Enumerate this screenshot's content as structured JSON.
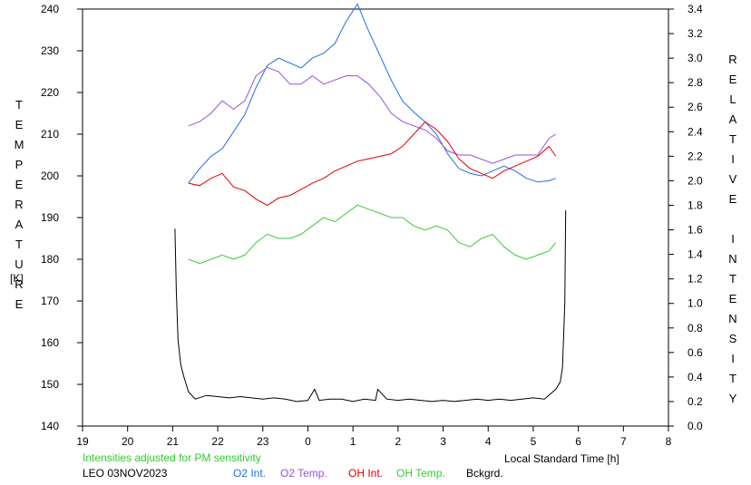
{
  "chart_data": {
    "type": "line",
    "left_axis_label": "TEMPERATURE",
    "left_axis_unit": "[K]",
    "right_axis_label": "RELATIVE INTENSITY",
    "xlabel": "Local Standard Time [h]",
    "note": "Intensities adjusted for PM sensitivity",
    "station_date": "LEO 03NOV2023",
    "x_ticks": [
      "19",
      "20",
      "21",
      "22",
      "23",
      "0",
      "1",
      "2",
      "3",
      "4",
      "5",
      "6",
      "7",
      "8"
    ],
    "y_left_ticks": [
      "140",
      "150",
      "160",
      "170",
      "180",
      "190",
      "200",
      "210",
      "220",
      "230",
      "240"
    ],
    "y_right_ticks": [
      "0.0",
      "0.2",
      "0.4",
      "0.6",
      "0.8",
      "1.0",
      "1.2",
      "1.4",
      "1.6",
      "1.8",
      "2.0",
      "2.2",
      "2.4",
      "2.6",
      "2.8",
      "3.0",
      "3.2",
      "3.4"
    ],
    "xlim": [
      19,
      32
    ],
    "ylim_left": [
      140,
      240
    ],
    "ylim_right": [
      0,
      3.4
    ],
    "grid": false,
    "colors": {
      "o2_int": "#1f6fe6",
      "o2_temp": "#9b4fd8",
      "oh_int": "#e00000",
      "oh_temp": "#3cc83c",
      "bckgrd": "#000000",
      "note": "#2ecc2e"
    },
    "series": [
      {
        "name": "O2 Int.",
        "axis": "right",
        "color": "#1f6fe6",
        "x": [
          21.35,
          21.6,
          21.85,
          22.1,
          22.35,
          22.6,
          22.85,
          23.1,
          23.35,
          23.6,
          23.85,
          24.1,
          24.35,
          24.6,
          24.85,
          25.1,
          25.35,
          25.6,
          25.85,
          26.1,
          26.35,
          26.6,
          26.85,
          27.1,
          27.35,
          27.6,
          27.85,
          28.1,
          28.35,
          28.6,
          28.85,
          29.1,
          29.35,
          29.5
        ],
        "y": [
          1.98,
          2.1,
          2.2,
          2.26,
          2.4,
          2.54,
          2.76,
          2.94,
          3.0,
          2.96,
          2.92,
          3.0,
          3.04,
          3.12,
          3.3,
          3.44,
          3.22,
          3.02,
          2.82,
          2.65,
          2.56,
          2.48,
          2.38,
          2.22,
          2.1,
          2.06,
          2.04,
          2.08,
          2.12,
          2.08,
          2.02,
          1.99,
          2.0,
          2.02
        ]
      },
      {
        "name": "O2 Temp.",
        "axis": "left",
        "color": "#9b4fd8",
        "x": [
          21.35,
          21.6,
          21.85,
          22.1,
          22.35,
          22.6,
          22.85,
          23.1,
          23.35,
          23.6,
          23.85,
          24.1,
          24.35,
          24.6,
          24.85,
          25.1,
          25.35,
          25.6,
          25.85,
          26.1,
          26.35,
          26.6,
          26.85,
          27.1,
          27.35,
          27.6,
          27.85,
          28.1,
          28.35,
          28.6,
          28.85,
          29.1,
          29.35,
          29.5
        ],
        "y": [
          212,
          213,
          215,
          218,
          216,
          218,
          224,
          226,
          225,
          222,
          222,
          224,
          222,
          223,
          224,
          224,
          222,
          219,
          215,
          213,
          212,
          211,
          209,
          206,
          205,
          205,
          204,
          203,
          204,
          205,
          205,
          205,
          209,
          210
        ]
      },
      {
        "name": "OH Int.",
        "axis": "right",
        "color": "#e00000",
        "x": [
          21.35,
          21.6,
          21.85,
          22.1,
          22.35,
          22.6,
          22.85,
          23.1,
          23.35,
          23.6,
          23.85,
          24.1,
          24.35,
          24.6,
          24.85,
          25.1,
          25.35,
          25.6,
          25.85,
          26.1,
          26.35,
          26.6,
          26.85,
          27.1,
          27.35,
          27.6,
          27.85,
          28.1,
          28.35,
          28.6,
          28.85,
          29.1,
          29.35,
          29.5
        ],
        "y": [
          1.98,
          1.96,
          2.02,
          2.06,
          1.95,
          1.92,
          1.85,
          1.8,
          1.86,
          1.88,
          1.93,
          1.98,
          2.02,
          2.08,
          2.12,
          2.16,
          2.18,
          2.2,
          2.22,
          2.28,
          2.38,
          2.48,
          2.42,
          2.32,
          2.18,
          2.1,
          2.06,
          2.02,
          2.08,
          2.12,
          2.16,
          2.2,
          2.28,
          2.2
        ]
      },
      {
        "name": "OH Temp.",
        "axis": "left",
        "color": "#3cc83c",
        "x": [
          21.35,
          21.6,
          21.85,
          22.1,
          22.35,
          22.6,
          22.85,
          23.1,
          23.35,
          23.6,
          23.85,
          24.1,
          24.35,
          24.6,
          24.85,
          25.1,
          25.35,
          25.6,
          25.85,
          26.1,
          26.35,
          26.6,
          26.85,
          27.1,
          27.35,
          27.6,
          27.85,
          28.1,
          28.35,
          28.6,
          28.85,
          29.1,
          29.35,
          29.5
        ],
        "y": [
          180,
          179,
          180,
          181,
          180,
          181,
          184,
          186,
          185,
          185,
          186,
          188,
          190,
          189,
          191,
          193,
          192,
          191,
          190,
          190,
          188,
          187,
          188,
          187,
          184,
          183,
          185,
          186,
          183,
          181,
          180,
          181,
          182,
          184
        ]
      },
      {
        "name": "Bckgrd.",
        "axis": "right",
        "color": "#000000",
        "x": [
          21.05,
          21.08,
          21.12,
          21.18,
          21.25,
          21.35,
          21.5,
          21.75,
          22.0,
          22.25,
          22.5,
          22.75,
          23.0,
          23.25,
          23.5,
          23.75,
          24.0,
          24.15,
          24.25,
          24.5,
          24.75,
          25.0,
          25.25,
          25.5,
          25.55,
          25.75,
          26.0,
          26.25,
          26.5,
          26.75,
          27.0,
          27.25,
          27.5,
          27.75,
          28.0,
          28.25,
          28.5,
          28.75,
          29.0,
          29.25,
          29.5,
          29.6,
          29.65,
          29.7,
          29.72
        ],
        "y": [
          1.61,
          1.1,
          0.7,
          0.5,
          0.4,
          0.28,
          0.22,
          0.25,
          0.24,
          0.23,
          0.24,
          0.23,
          0.22,
          0.23,
          0.22,
          0.2,
          0.21,
          0.3,
          0.21,
          0.22,
          0.22,
          0.2,
          0.22,
          0.21,
          0.3,
          0.22,
          0.21,
          0.22,
          0.21,
          0.2,
          0.21,
          0.2,
          0.21,
          0.22,
          0.21,
          0.22,
          0.21,
          0.22,
          0.23,
          0.22,
          0.3,
          0.36,
          0.48,
          1.0,
          1.76
        ]
      }
    ]
  }
}
